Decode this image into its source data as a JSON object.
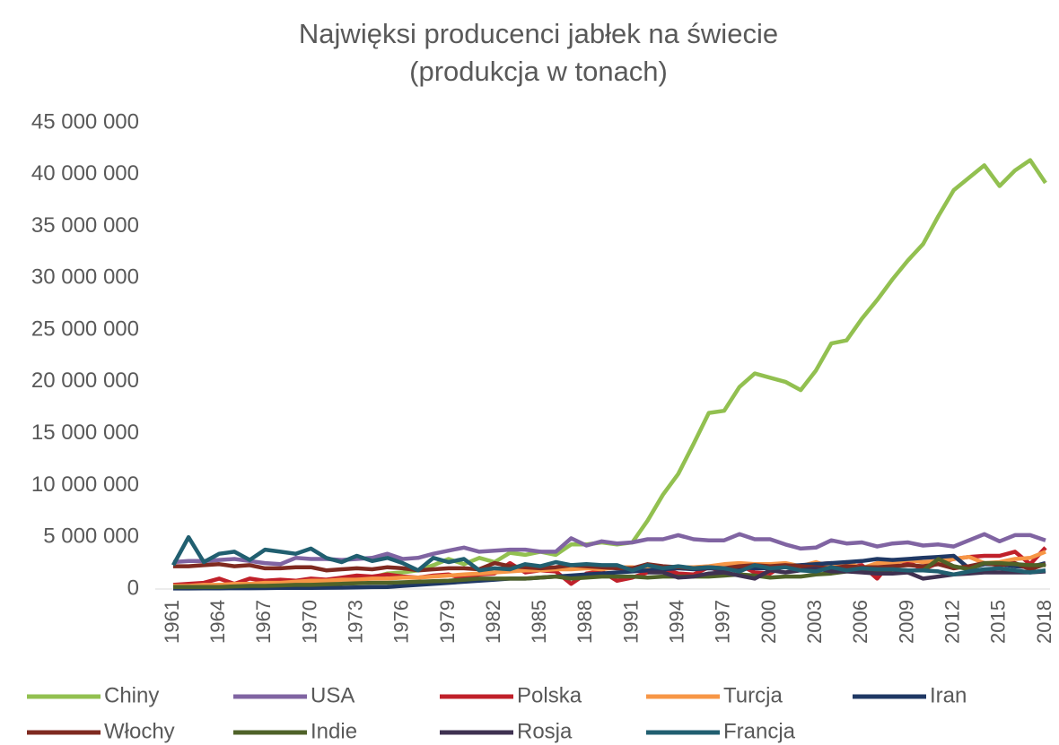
{
  "chart_data": {
    "type": "line",
    "title": "Najwięksi producenci jabłek na świecie",
    "subtitle": "(produkcja w tonach)",
    "x": [
      1961,
      1962,
      1963,
      1964,
      1965,
      1966,
      1967,
      1968,
      1969,
      1970,
      1971,
      1972,
      1973,
      1974,
      1975,
      1976,
      1977,
      1978,
      1979,
      1980,
      1981,
      1982,
      1983,
      1984,
      1985,
      1986,
      1987,
      1988,
      1989,
      1990,
      1991,
      1992,
      1993,
      1994,
      1995,
      1996,
      1997,
      1998,
      1999,
      2000,
      2001,
      2002,
      2003,
      2004,
      2005,
      2006,
      2007,
      2008,
      2009,
      2010,
      2011,
      2012,
      2013,
      2014,
      2015,
      2016,
      2017,
      2018
    ],
    "xlim": [
      1961,
      2018
    ],
    "xticks": [
      1961,
      1964,
      1967,
      1970,
      1973,
      1976,
      1979,
      1982,
      1985,
      1988,
      1991,
      1994,
      1997,
      2000,
      2003,
      2006,
      2009,
      2012,
      2015,
      2018
    ],
    "ylim": [
      0,
      45000000
    ],
    "yticks": [
      {
        "value": 0,
        "label": "0"
      },
      {
        "value": 5000000,
        "label": "5 000 000"
      },
      {
        "value": 10000000,
        "label": "10 000 000"
      },
      {
        "value": 15000000,
        "label": "15 000 000"
      },
      {
        "value": 20000000,
        "label": "20 000 000"
      },
      {
        "value": 25000000,
        "label": "25 000 000"
      },
      {
        "value": 30000000,
        "label": "30 000 000"
      },
      {
        "value": 35000000,
        "label": "35 000 000"
      },
      {
        "value": 40000000,
        "label": "40 000 000"
      },
      {
        "value": 45000000,
        "label": "45 000 000"
      }
    ],
    "grid": false,
    "legend": "bottom",
    "series": [
      {
        "name": "Chiny",
        "color": "#92c050",
        "values": [
          200000,
          300000,
          300000,
          400000,
          400000,
          500000,
          500000,
          600000,
          600000,
          700000,
          800000,
          900000,
          1200000,
          1100000,
          1500000,
          1600000,
          1800000,
          2300000,
          2900000,
          2400000,
          3000000,
          2600000,
          3500000,
          3300000,
          3600000,
          3300000,
          4300000,
          4300000,
          4500000,
          4300000,
          4500000,
          6600000,
          9100000,
          11100000,
          14000000,
          17000000,
          17200000,
          19500000,
          20800000,
          20400000,
          20000000,
          19200000,
          21100000,
          23700000,
          24000000,
          26100000,
          27900000,
          29900000,
          31700000,
          33300000,
          36000000,
          38500000,
          39700000,
          40900000,
          38900000,
          40400000,
          41400000,
          39200000
        ]
      },
      {
        "name": "USA",
        "color": "#8064a2",
        "values": [
          2600000,
          2700000,
          2700000,
          2800000,
          2900000,
          2700000,
          2500000,
          2400000,
          3000000,
          2900000,
          2900000,
          2800000,
          2900000,
          3000000,
          3400000,
          2900000,
          3000000,
          3400000,
          3700000,
          4000000,
          3600000,
          3700000,
          3800000,
          3800000,
          3600000,
          3600000,
          4900000,
          4200000,
          4600000,
          4400000,
          4500000,
          4800000,
          4800000,
          5200000,
          4800000,
          4700000,
          4700000,
          5300000,
          4800000,
          4800000,
          4300000,
          3900000,
          4000000,
          4700000,
          4400000,
          4500000,
          4100000,
          4400000,
          4500000,
          4200000,
          4300000,
          4100000,
          4700000,
          5300000,
          4600000,
          5200000,
          5200000,
          4700000
        ]
      },
      {
        "name": "Polska",
        "color": "#c0202a",
        "values": [
          400000,
          500000,
          600000,
          1000000,
          500000,
          1000000,
          800000,
          900000,
          800000,
          1000000,
          900000,
          1100000,
          1300000,
          1200000,
          1400000,
          1200000,
          1100000,
          1300000,
          1400000,
          1000000,
          1400000,
          1500000,
          2500000,
          1600000,
          1800000,
          1700000,
          500000,
          1500000,
          1700000,
          800000,
          1100000,
          1600000,
          1900000,
          1500000,
          1400000,
          2100000,
          1600000,
          2300000,
          1600000,
          1500000,
          2400000,
          2200000,
          2400000,
          2500000,
          2100000,
          2300000,
          1000000,
          2800000,
          2600000,
          1900000,
          2500000,
          2900000,
          3100000,
          3200000,
          3200000,
          3600000,
          2400000,
          4000000
        ]
      },
      {
        "name": "Turcja",
        "color": "#f79646",
        "values": [
          300000,
          300000,
          400000,
          400000,
          500000,
          500000,
          600000,
          600000,
          700000,
          800000,
          800000,
          900000,
          900000,
          1000000,
          1000000,
          1100000,
          1100000,
          1200000,
          1300000,
          1400000,
          1500000,
          1600000,
          1700000,
          1800000,
          1800000,
          1900000,
          1900000,
          2000000,
          1900000,
          2100000,
          2100000,
          1900000,
          2100000,
          2100000,
          2100000,
          2200000,
          2400000,
          2500000,
          2400000,
          2400000,
          2500000,
          2200000,
          2600000,
          2100000,
          2600000,
          2000000,
          2500000,
          2500000,
          2800000,
          2600000,
          2700000,
          2900000,
          3100000,
          2500000,
          2600000,
          2900000,
          3000000,
          3600000
        ]
      },
      {
        "name": "Iran",
        "color": "#1f3864",
        "values": [
          50000,
          50000,
          60000,
          70000,
          80000,
          80000,
          90000,
          100000,
          100000,
          100000,
          120000,
          130000,
          150000,
          180000,
          200000,
          300000,
          400000,
          500000,
          600000,
          700000,
          800000,
          900000,
          1000000,
          1000000,
          1100000,
          1200000,
          1300000,
          1400000,
          1500000,
          1600000,
          1700000,
          1800000,
          1900000,
          2000000,
          1900000,
          2000000,
          1900000,
          2100000,
          2000000,
          2000000,
          2200000,
          2300000,
          2400000,
          2500000,
          2600000,
          2700000,
          2900000,
          2800000,
          2900000,
          3000000,
          3100000,
          3200000,
          2000000,
          2400000,
          2400000,
          2200000,
          2100000,
          2500000
        ]
      },
      {
        "name": "Włochy",
        "color": "#7f2a20",
        "values": [
          2200000,
          2200000,
          2300000,
          2400000,
          2200000,
          2300000,
          2000000,
          2000000,
          2100000,
          2100000,
          1800000,
          1900000,
          2000000,
          1900000,
          2100000,
          2000000,
          1800000,
          1900000,
          2000000,
          2000000,
          1900000,
          2500000,
          2200000,
          2100000,
          2000000,
          2100000,
          2300000,
          2200000,
          2100000,
          2000000,
          2000000,
          2400000,
          2200000,
          2100000,
          2000000,
          2100000,
          2000000,
          2200000,
          2300000,
          2200000,
          2300000,
          2200000,
          2100000,
          2000000,
          2200000,
          2100000,
          2100000,
          2200000,
          2300000,
          2200000,
          2400000,
          2000000,
          2200000,
          2500000,
          2300000,
          2500000,
          1900000,
          2400000
        ]
      },
      {
        "name": "Indie",
        "color": "#4f6228",
        "values": [
          200000,
          200000,
          200000,
          200000,
          250000,
          300000,
          300000,
          350000,
          400000,
          400000,
          450000,
          500000,
          550000,
          600000,
          600000,
          650000,
          700000,
          750000,
          800000,
          900000,
          1000000,
          1000000,
          1000000,
          1000000,
          1100000,
          1200000,
          1000000,
          1100000,
          1200000,
          1200000,
          1200000,
          1100000,
          1200000,
          1200000,
          1200000,
          1200000,
          1300000,
          1400000,
          1300000,
          1100000,
          1200000,
          1200000,
          1400000,
          1500000,
          1700000,
          1800000,
          1600000,
          1900000,
          1800000,
          1800000,
          2900000,
          2200000,
          1900000,
          2500000,
          2500000,
          2400000,
          2300000,
          2300000
        ]
      },
      {
        "name": "Rosja",
        "color": "#3f3151",
        "values": [
          null,
          null,
          null,
          null,
          null,
          null,
          null,
          null,
          null,
          null,
          null,
          null,
          null,
          null,
          null,
          null,
          null,
          null,
          null,
          null,
          null,
          null,
          null,
          null,
          null,
          null,
          null,
          null,
          null,
          null,
          null,
          1600000,
          1600000,
          1100000,
          1200000,
          1500000,
          1600000,
          1300000,
          1000000,
          1800000,
          1600000,
          1800000,
          2000000,
          1700000,
          1700000,
          1600000,
          1500000,
          1500000,
          1600000,
          1000000,
          1200000,
          1400000,
          1500000,
          1600000,
          1600000,
          1600000,
          1600000,
          1700000
        ]
      },
      {
        "name": "Francja",
        "color": "#215f70",
        "values": [
          2300000,
          5000000,
          2600000,
          3400000,
          3600000,
          2800000,
          3800000,
          3600000,
          3400000,
          3900000,
          3000000,
          2600000,
          3200000,
          2700000,
          3000000,
          2500000,
          1800000,
          3000000,
          2600000,
          2900000,
          1800000,
          2000000,
          1900000,
          2400000,
          2200000,
          2600000,
          2300000,
          2400000,
          2300000,
          2300000,
          1800000,
          2300000,
          2000000,
          2200000,
          2000000,
          2100000,
          2000000,
          1700000,
          2300000,
          2000000,
          2100000,
          1800000,
          1700000,
          2100000,
          1800000,
          2000000,
          1900000,
          1900000,
          1800000,
          1800000,
          1700000,
          1400000,
          1700000,
          1900000,
          2000000,
          1800000,
          1600000,
          1800000
        ]
      }
    ]
  }
}
